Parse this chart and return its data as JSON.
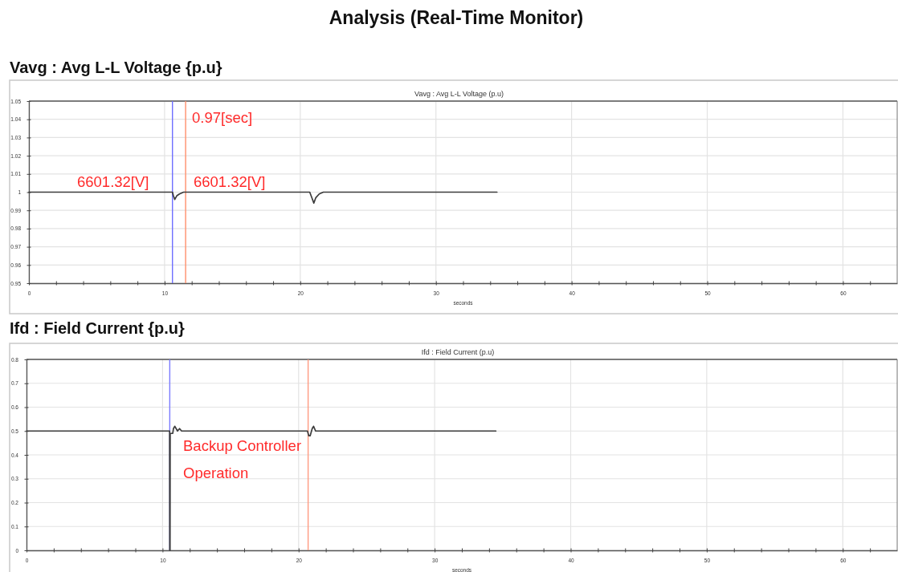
{
  "chart_data": [
    {
      "type": "line",
      "title": "Vavg : Avg L-L Voltage {p.u}",
      "subtitle": "Vavg : Avg L-L Voltage (p.u)",
      "xlabel": "seconds",
      "annotations": [
        "Analysis (Real-Time Monitor)",
        "6601.32[V]",
        "6601.32[V]",
        "0.97[sec]"
      ],
      "x": [
        0,
        10.58,
        10.65,
        10.75,
        10.9,
        11.1,
        11.4,
        11.6,
        20.7,
        20.85,
        21.0,
        21.15,
        21.4,
        21.7,
        22.0,
        34.5
      ],
      "series": [
        {
          "color": "#3c3c3c",
          "values": [
            1,
            1,
            0.998,
            0.996,
            0.998,
            0.999,
            1,
            1,
            1,
            0.997,
            0.994,
            0.997,
            0.999,
            1,
            1,
            1
          ]
        }
      ],
      "xlim": [
        0,
        64
      ],
      "ylim": [
        0.95,
        1.05
      ],
      "xticks": [
        0,
        {
          "value": 2,
          "label": null
        },
        {
          "value": 4,
          "label": null
        },
        {
          "value": 6,
          "label": null
        },
        {
          "value": 8,
          "label": null
        },
        10,
        {
          "value": 12,
          "label": null
        },
        {
          "value": 14,
          "label": null
        },
        {
          "value": 16,
          "label": null
        },
        {
          "value": 18,
          "label": null
        },
        20,
        {
          "value": 22,
          "label": null
        },
        {
          "value": 24,
          "label": null
        },
        {
          "value": 26,
          "label": null
        },
        {
          "value": 28,
          "label": null
        },
        30,
        {
          "value": 32,
          "label": null
        },
        {
          "value": 34,
          "label": null
        },
        {
          "value": 36,
          "label": null
        },
        {
          "value": 38,
          "label": null
        },
        40,
        {
          "value": 42,
          "label": null
        },
        {
          "value": 44,
          "label": null
        },
        {
          "value": 46,
          "label": null
        },
        {
          "value": 48,
          "label": null
        },
        50,
        {
          "value": 52,
          "label": null
        },
        {
          "value": 54,
          "label": null
        },
        {
          "value": 56,
          "label": null
        },
        {
          "value": 58,
          "label": null
        },
        60,
        {
          "value": 62,
          "label": null
        }
      ],
      "yticks": [
        0.95,
        0.96,
        0.97,
        0.98,
        0.99,
        1,
        1.01,
        1.02,
        1.03,
        1.04,
        1.05
      ],
      "grid": true,
      "ref_lines": [
        {
          "axis": "x",
          "value": 10.58,
          "color": "#6f6fff"
        },
        {
          "axis": "x",
          "value": 11.55,
          "color": "#ff8f6b"
        }
      ]
    },
    {
      "type": "line",
      "title": "Ifd : Field Current {p.u}",
      "subtitle": "Ifd : Field Current (p.u)",
      "xlabel": "seconds",
      "annotations": [
        "Backup Controller",
        "Operation"
      ],
      "x": [
        0,
        10.52,
        10.53,
        10.55,
        10.56,
        10.75,
        10.8,
        10.9,
        11.0,
        11.1,
        11.25,
        11.4,
        20.65,
        20.75,
        20.85,
        21.0,
        21.1,
        21.25,
        21.4,
        34.5
      ],
      "series": [
        {
          "color": "#3c3c3c",
          "values": [
            0.5,
            0.5,
            0,
            0,
            0.49,
            0.49,
            0.51,
            0.52,
            0.51,
            0.5,
            0.51,
            0.5,
            0.5,
            0.48,
            0.48,
            0.51,
            0.52,
            0.5,
            0.5,
            0.5
          ]
        }
      ],
      "xlim": [
        0,
        64
      ],
      "ylim": [
        0,
        0.8
      ],
      "xticks": [
        0,
        {
          "value": 2,
          "label": null
        },
        {
          "value": 4,
          "label": null
        },
        {
          "value": 6,
          "label": null
        },
        {
          "value": 8,
          "label": null
        },
        10,
        {
          "value": 12,
          "label": null
        },
        {
          "value": 14,
          "label": null
        },
        {
          "value": 16,
          "label": null
        },
        {
          "value": 18,
          "label": null
        },
        20,
        {
          "value": 22,
          "label": null
        },
        {
          "value": 24,
          "label": null
        },
        {
          "value": 26,
          "label": null
        },
        {
          "value": 28,
          "label": null
        },
        30,
        {
          "value": 32,
          "label": null
        },
        {
          "value": 34,
          "label": null
        },
        {
          "value": 36,
          "label": null
        },
        {
          "value": 38,
          "label": null
        },
        40,
        {
          "value": 42,
          "label": null
        },
        {
          "value": 44,
          "label": null
        },
        {
          "value": 46,
          "label": null
        },
        {
          "value": 48,
          "label": null
        },
        50,
        {
          "value": 52,
          "label": null
        },
        {
          "value": 54,
          "label": null
        },
        {
          "value": 56,
          "label": null
        },
        {
          "value": 58,
          "label": null
        },
        60,
        {
          "value": 62,
          "label": null
        }
      ],
      "yticks": [
        0,
        0.1,
        0.2,
        0.3,
        0.4,
        0.5,
        0.6,
        0.7,
        0.8
      ],
      "grid": true,
      "ref_lines": [
        {
          "axis": "x",
          "value": 10.53,
          "color": "#7b7bff"
        },
        {
          "axis": "x",
          "value": 20.7,
          "color": "#ff9a80"
        }
      ]
    }
  ]
}
